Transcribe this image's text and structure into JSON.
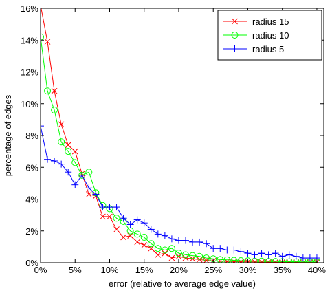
{
  "chart_data": {
    "type": "line",
    "title": "",
    "xlabel": "error (relative to average edge value)",
    "ylabel": "percentage of edges",
    "xlim": [
      0,
      41
    ],
    "ylim": [
      0,
      16
    ],
    "x_ticks": [
      0,
      5,
      10,
      15,
      20,
      25,
      30,
      35,
      40
    ],
    "x_tick_labels": [
      "0%",
      "5%",
      "10%",
      "15%",
      "20%",
      "25%",
      "30%",
      "35%",
      "40%"
    ],
    "y_ticks": [
      0,
      2,
      4,
      6,
      8,
      10,
      12,
      14,
      16
    ],
    "y_tick_labels": [
      "0%",
      "2%",
      "4%",
      "6%",
      "8%",
      "10%",
      "12%",
      "14%",
      "16%"
    ],
    "grid": false,
    "legend_position": "top-right",
    "series": [
      {
        "name": "radius 15",
        "color": "#ff0000",
        "marker": "x",
        "x": [
          0,
          1,
          2,
          3,
          4,
          5,
          6,
          7,
          8,
          9,
          10,
          11,
          12,
          13,
          14,
          15,
          16,
          17,
          18,
          19,
          20,
          21,
          22,
          23,
          24,
          25,
          26,
          27,
          28,
          29,
          30,
          31,
          32,
          33,
          34,
          35,
          36,
          37,
          38,
          39,
          40
        ],
        "values": [
          16.2,
          13.9,
          10.8,
          8.7,
          7.4,
          7.0,
          5.6,
          4.3,
          4.2,
          2.9,
          2.9,
          2.1,
          1.6,
          1.7,
          1.3,
          1.1,
          0.9,
          0.5,
          0.6,
          0.3,
          0.4,
          0.3,
          0.25,
          0.2,
          0.15,
          0.12,
          0.1,
          0.08,
          0.07,
          0.06,
          0.05,
          0.05,
          0.04,
          0.04,
          0.03,
          0.03,
          0.03,
          0.02,
          0.02,
          0.02,
          0.02
        ]
      },
      {
        "name": "radius 10",
        "color": "#00ff00",
        "marker": "circle",
        "x": [
          0,
          1,
          2,
          3,
          4,
          5,
          6,
          7,
          8,
          9,
          10,
          11,
          12,
          13,
          14,
          15,
          16,
          17,
          18,
          19,
          20,
          21,
          22,
          23,
          24,
          25,
          26,
          27,
          28,
          29,
          30,
          31,
          32,
          33,
          34,
          35,
          36,
          37,
          38,
          39,
          40
        ],
        "values": [
          14.2,
          10.8,
          9.6,
          7.6,
          7.0,
          6.3,
          5.5,
          5.7,
          4.4,
          3.6,
          3.4,
          2.8,
          2.6,
          2.0,
          1.8,
          1.6,
          1.2,
          0.9,
          0.8,
          0.9,
          0.6,
          0.5,
          0.45,
          0.4,
          0.3,
          0.25,
          0.2,
          0.18,
          0.15,
          0.13,
          0.12,
          0.1,
          0.1,
          0.08,
          0.08,
          0.07,
          0.06,
          0.06,
          0.05,
          0.05,
          0.05
        ]
      },
      {
        "name": "radius 5",
        "color": "#0000ff",
        "marker": "plus",
        "x": [
          0,
          1,
          2,
          3,
          4,
          5,
          6,
          7,
          8,
          9,
          10,
          11,
          12,
          13,
          14,
          15,
          16,
          17,
          18,
          19,
          20,
          21,
          22,
          23,
          24,
          25,
          26,
          27,
          28,
          29,
          30,
          31,
          32,
          33,
          34,
          35,
          36,
          37,
          38,
          39,
          40
        ],
        "values": [
          8.6,
          6.5,
          6.4,
          6.2,
          5.7,
          4.9,
          5.5,
          4.7,
          4.3,
          3.5,
          3.5,
          3.5,
          2.8,
          2.4,
          2.7,
          2.5,
          2.1,
          1.8,
          1.7,
          1.5,
          1.4,
          1.4,
          1.3,
          1.3,
          1.2,
          0.9,
          0.9,
          0.8,
          0.8,
          0.7,
          0.6,
          0.5,
          0.6,
          0.5,
          0.6,
          0.4,
          0.5,
          0.4,
          0.3,
          0.3,
          0.3
        ]
      }
    ]
  }
}
